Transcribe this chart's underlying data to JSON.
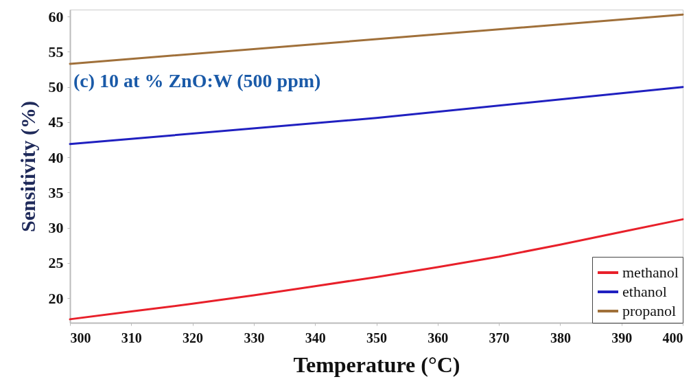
{
  "chart_data": {
    "type": "line",
    "xlabel": "Temperature (°C)",
    "ylabel": "Sensitivity (%)",
    "annotations": [
      "(c) 10 at % ZnO:W (500 ppm)"
    ],
    "x": [
      300,
      310,
      320,
      330,
      340,
      350,
      360,
      370,
      380,
      390,
      400
    ],
    "series": [
      {
        "name": "methanol",
        "color": "#e8202a",
        "values": [
          17.0,
          18.1,
          19.2,
          20.4,
          21.7,
          23.0,
          24.4,
          25.9,
          27.6,
          29.4,
          31.2
        ]
      },
      {
        "name": "ethanol",
        "color": "#2020c0",
        "x": [
          300,
          350,
          400
        ],
        "values": [
          41.9,
          45.6,
          50.0
        ]
      },
      {
        "name": "propanol",
        "color": "#a0703a",
        "x": [
          300,
          350,
          400
        ],
        "values": [
          53.3,
          56.8,
          60.3
        ]
      }
    ],
    "xlim": [
      300,
      400
    ],
    "xticks": [
      300,
      310,
      320,
      330,
      340,
      350,
      360,
      370,
      380,
      390,
      400
    ],
    "ylim": [
      16.5,
      61
    ],
    "yticks": [
      20,
      25,
      30,
      35,
      40,
      45,
      50,
      55,
      60
    ],
    "grid": false,
    "legend": "bottom right",
    "marker": "none",
    "line_style": "solid"
  }
}
